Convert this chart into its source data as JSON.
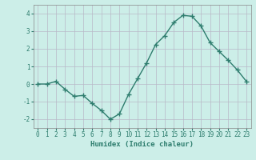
{
  "x": [
    0,
    1,
    2,
    3,
    4,
    5,
    6,
    7,
    8,
    9,
    10,
    11,
    12,
    13,
    14,
    15,
    16,
    17,
    18,
    19,
    20,
    21,
    22,
    23
  ],
  "y": [
    0.0,
    0.0,
    0.15,
    -0.3,
    -0.7,
    -0.65,
    -1.1,
    -1.5,
    -2.0,
    -1.7,
    -0.6,
    0.3,
    1.2,
    2.25,
    2.75,
    3.5,
    3.9,
    3.85,
    3.3,
    2.35,
    1.85,
    1.35,
    0.8,
    0.15
  ],
  "line_color": "#2e7d6e",
  "marker": "+",
  "markersize": 4,
  "linewidth": 1.0,
  "xlabel": "Humidex (Indice chaleur)",
  "xlim": [
    -0.5,
    23.5
  ],
  "ylim": [
    -2.5,
    4.5
  ],
  "yticks": [
    -2,
    -1,
    0,
    1,
    2,
    3,
    4
  ],
  "xticks": [
    0,
    1,
    2,
    3,
    4,
    5,
    6,
    7,
    8,
    9,
    10,
    11,
    12,
    13,
    14,
    15,
    16,
    17,
    18,
    19,
    20,
    21,
    22,
    23
  ],
  "bg_color": "#cceee8",
  "grid_color": "#b8b8c8",
  "tick_fontsize": 5.5,
  "xlabel_fontsize": 6.5
}
